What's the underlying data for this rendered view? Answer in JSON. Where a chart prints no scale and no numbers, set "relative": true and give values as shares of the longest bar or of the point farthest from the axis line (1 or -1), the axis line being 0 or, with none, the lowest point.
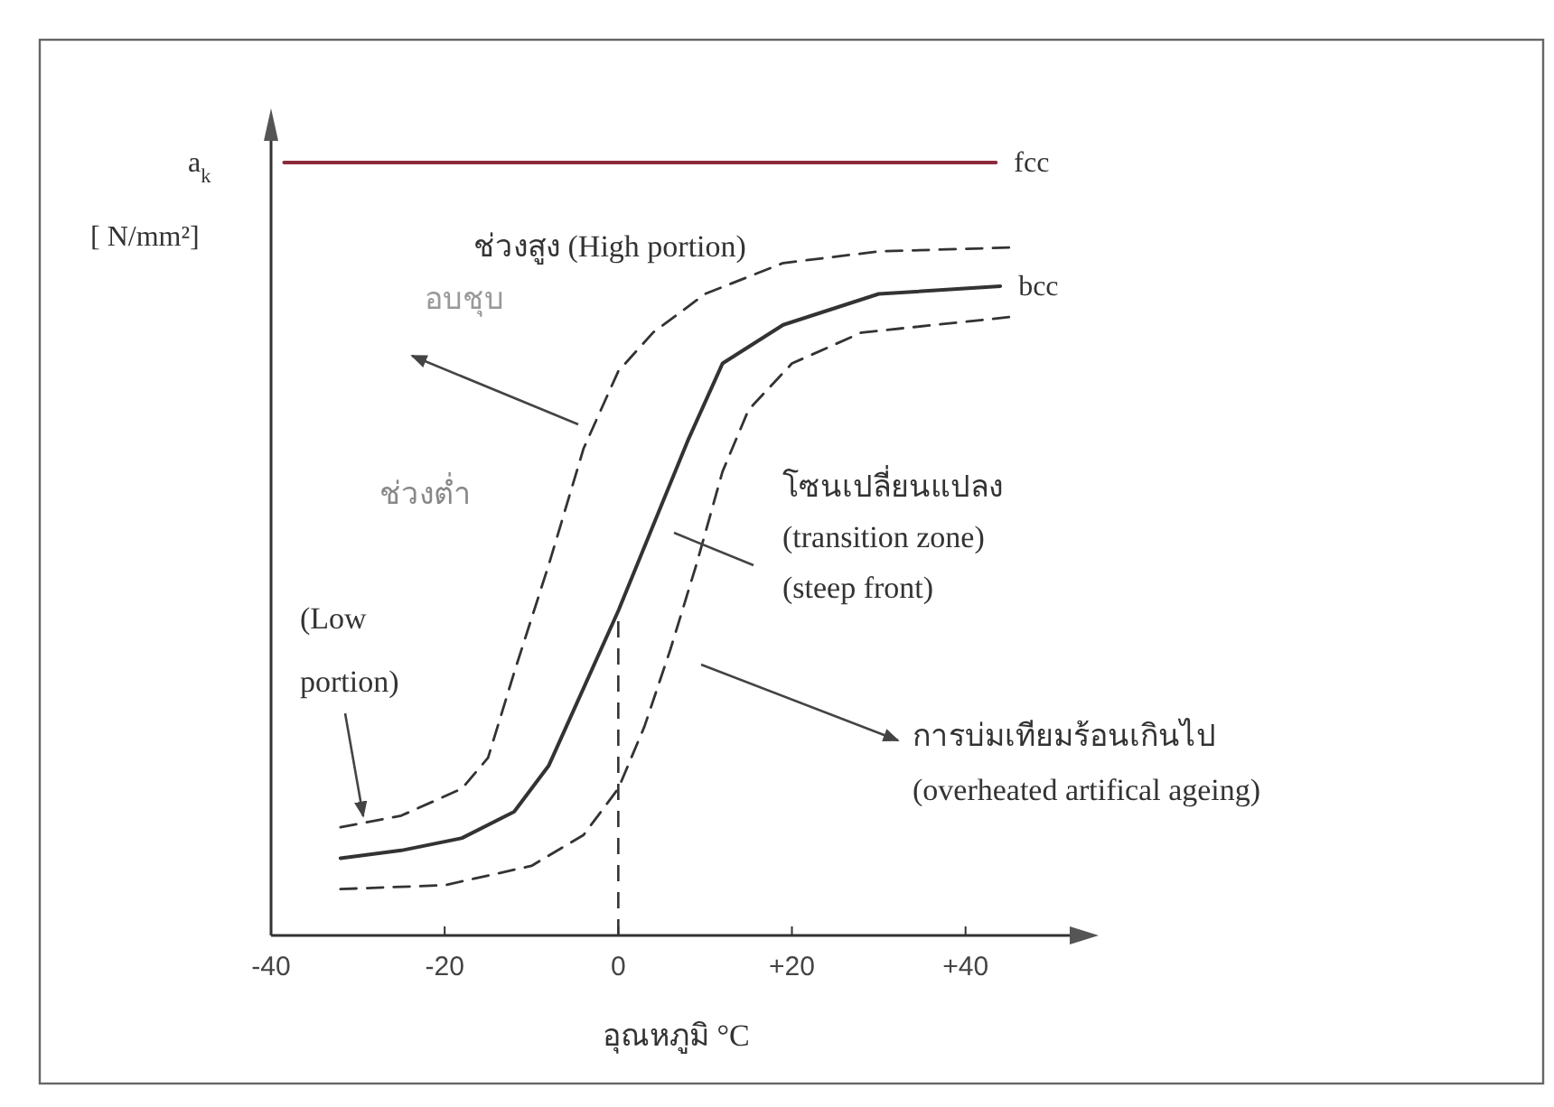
{
  "chart_data": {
    "type": "line",
    "relative": true,
    "xlabel": "อุณหภูมิ °C",
    "ylabel": "a$_{k}$\n[ N/mm²]",
    "xlim": [
      -40,
      52
    ],
    "xticks": [
      -40,
      -20,
      0,
      {
        "value": 20,
        "label": "+20"
      },
      {
        "value": 40,
        "label": "+40"
      }
    ],
    "marker": "none",
    "series": [
      {
        "name": "fcc",
        "color": "#8b2a3a",
        "line_style": "solid",
        "x": [
          -38.5,
          43.5
        ],
        "values": [
          1,
          1
        ]
      },
      {
        "name": "bcc",
        "color": "#333333",
        "line_style": "solid",
        "x": [
          -32,
          -25,
          -18,
          -12,
          -8,
          -4,
          0,
          4,
          8,
          12,
          19,
          30,
          44
        ],
        "values": [
          0.1,
          0.11,
          0.126,
          0.16,
          0.22,
          0.32,
          0.42,
          0.53,
          0.64,
          0.74,
          0.79,
          0.83,
          0.84
        ]
      },
      {
        "color": "#333333",
        "line_style": "dashed",
        "x": [
          -32,
          -25,
          -18,
          -15,
          -12,
          -8,
          -4,
          0,
          4,
          10,
          19,
          30,
          45
        ],
        "values": [
          0.14,
          0.155,
          0.19,
          0.23,
          0.34,
          0.48,
          0.63,
          0.73,
          0.78,
          0.83,
          0.87,
          0.885,
          0.89
        ]
      },
      {
        "color": "#333333",
        "line_style": "dashed",
        "x": [
          -32,
          -20,
          -10,
          -4,
          0,
          3,
          6,
          9,
          12,
          15,
          20,
          28,
          45
        ],
        "values": [
          0.06,
          0.065,
          0.09,
          0.13,
          0.19,
          0.27,
          0.37,
          0.48,
          0.6,
          0.68,
          0.74,
          0.78,
          0.8
        ]
      }
    ],
    "ref_lines": [
      {
        "axis": "x",
        "value": 0,
        "line_style": "dashed",
        "color": "#333333"
      }
    ],
    "annotations": [
      "ช่วงสูง (High portion)",
      "อบชุบ",
      "ช่วงต่ำ",
      "(Low\nportion)",
      "โซนเปลี่ยนแปลง\n(transition zone)\n(steep front)",
      "การบ่มเทียมร้อนเกินไป\n(overheated artifical ageing)"
    ]
  }
}
